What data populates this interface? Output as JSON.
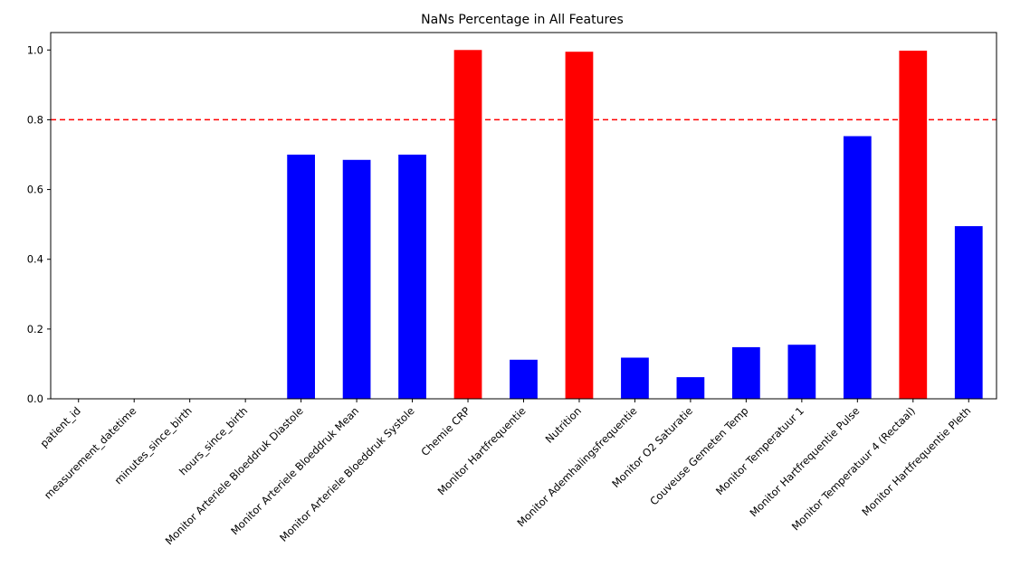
{
  "chart_data": {
    "type": "bar",
    "title": "NaNs Percentage in All Features",
    "xlabel": "",
    "ylabel": "",
    "ylim": [
      0,
      1.05
    ],
    "yticks": [
      0.0,
      0.2,
      0.4,
      0.6,
      0.8,
      1.0
    ],
    "ytick_labels": [
      "0.0",
      "0.2",
      "0.4",
      "0.6",
      "0.8",
      "1.0"
    ],
    "grid": false,
    "categories": [
      "patient_id",
      "measurement_datetime",
      "minutes_since_birth",
      "hours_since_birth",
      "Monitor Arteriele Bloeddruk Diastole",
      "Monitor Arteriele Bloeddruk Mean",
      "Monitor Arteriele Bloeddruk Systole",
      "Chemie CRP",
      "Monitor Hartfrequentie",
      "Nutrition",
      "Monitor Ademhalingsfrequentie",
      "Monitor O2 Saturatie",
      "Couveuse Gemeten Temp",
      "Monitor Temperatuur 1",
      "Monitor Hartfrequentie Pulse",
      "Monitor Temperatuur 4 (Rectaal)",
      "Monitor Hartfrequentie Pleth"
    ],
    "values": [
      0.0,
      0.0,
      0.0,
      0.0,
      0.7,
      0.685,
      0.7,
      1.0,
      0.112,
      0.995,
      0.118,
      0.062,
      0.148,
      0.155,
      0.753,
      0.998,
      0.495
    ],
    "threshold": 0.8,
    "colors": {
      "below_threshold": "#0000ff",
      "above_threshold": "#ff0000",
      "threshold_line": "#ff0000"
    }
  }
}
